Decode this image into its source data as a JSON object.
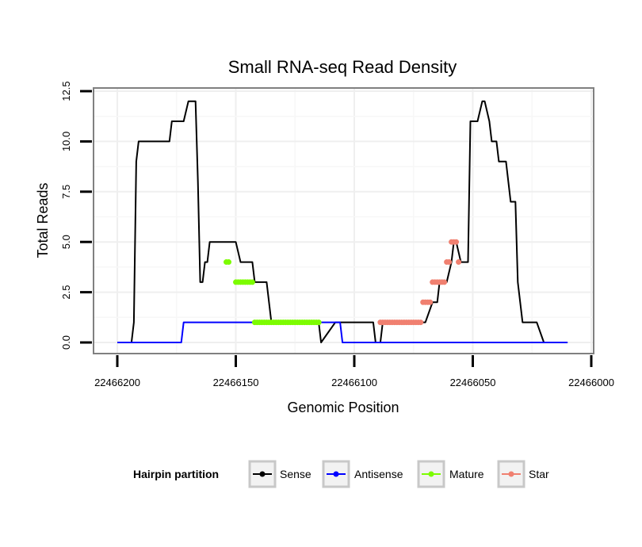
{
  "chart_data": {
    "type": "line",
    "title": "Small RNA-seq Read Density",
    "xlabel": "Genomic Position",
    "ylabel": "Total Reads",
    "xlim": [
      22466000,
      22466200
    ],
    "x_reversed": true,
    "ylim": [
      0,
      12.5
    ],
    "x_ticks": [
      22466200,
      22466150,
      22466100,
      22466050,
      22466000
    ],
    "x_tick_labels": [
      "22466200",
      "22466150",
      "22466100",
      "22466050",
      "22466000"
    ],
    "y_ticks": [
      0,
      2.5,
      5,
      7.5,
      10,
      12.5
    ],
    "y_tick_labels": [
      "0.0",
      "2.5",
      "5.0",
      "7.5",
      "10.0",
      "12.5"
    ],
    "grid": true,
    "legend": {
      "title": "Hairpin partition",
      "position": "bottom",
      "entries": [
        "Sense",
        "Antisense",
        "Mature",
        "Star"
      ]
    },
    "series": [
      {
        "name": "Sense",
        "color": "#000000",
        "style": "line",
        "x": [
          22466200,
          22466194,
          22466193,
          22466192,
          22466191,
          22466184,
          22466178,
          22466177,
          22466172,
          22466170,
          22466167,
          22466166,
          22466165,
          22466164,
          22466163,
          22466162,
          22466161,
          22466159,
          22466153,
          22466150,
          22466148,
          22466147,
          22466146,
          22466145,
          22466144,
          22466143,
          22466142,
          22466141,
          22466140,
          22466139,
          22466138,
          22466137,
          22466136,
          22466135,
          22466134,
          22466133,
          22466132,
          22466131,
          22466130,
          22466129,
          22466128,
          22466127,
          22466126,
          22466125,
          22466124,
          22466123,
          22466122,
          22466121,
          22466120,
          22466119,
          22466118,
          22466117,
          22466116,
          22466115,
          22466114,
          22466108,
          22466107,
          22466103,
          22466100,
          22466092,
          22466091,
          22466089,
          22466088,
          22466087,
          22466086,
          22466084,
          22466080,
          22466075,
          22466070,
          22466067,
          22466066,
          22466065,
          22466064,
          22466063,
          22466062,
          22466061,
          22466059,
          22466058,
          22466057,
          22466055,
          22466054,
          22466052,
          22466051,
          22466049,
          22466048,
          22466046,
          22466045,
          22466043,
          22466042,
          22466040,
          22466039,
          22466037,
          22466036,
          22466034,
          22466033,
          22466032,
          22466031,
          22466029,
          22466023,
          22466020,
          22466010
        ],
        "y": [
          0,
          0,
          1,
          9,
          10,
          10,
          10,
          11,
          11,
          12,
          12,
          8,
          3,
          3,
          4,
          4,
          5,
          5,
          5,
          5,
          4,
          4,
          4,
          4,
          4,
          4,
          3,
          3,
          3,
          3,
          3,
          3,
          2,
          1,
          1,
          1,
          1,
          1,
          1,
          1,
          1,
          1,
          1,
          1,
          1,
          1,
          1,
          1,
          1,
          1,
          1,
          1,
          1,
          1,
          0,
          1,
          1,
          1,
          1,
          1,
          0,
          0,
          1,
          1,
          1,
          1,
          1,
          1,
          1,
          2,
          2,
          2,
          3,
          3,
          3,
          3,
          4,
          5,
          5,
          4,
          4,
          4,
          11,
          11,
          11,
          12,
          12,
          11,
          10,
          10,
          9,
          9,
          9,
          7,
          7,
          7,
          3,
          1,
          1,
          0,
          0
        ]
      },
      {
        "name": "Antisense",
        "color": "#0000ff",
        "style": "line",
        "x": [
          22466200,
          22466173,
          22466172,
          22466158,
          22466157,
          22466150,
          22466106,
          22466105,
          22466020,
          22466010
        ],
        "y": [
          0,
          0,
          1,
          1,
          1,
          1,
          1,
          0,
          0,
          0
        ]
      },
      {
        "name": "Mature",
        "color": "#7cfc00",
        "style": "points",
        "x": [
          22466154,
          22466153,
          22466150,
          22466149,
          22466148,
          22466147,
          22466146,
          22466145,
          22466144,
          22466143,
          22466142,
          22466141,
          22466140,
          22466139,
          22466138,
          22466137,
          22466136,
          22466135,
          22466134,
          22466133,
          22466132,
          22466131,
          22466130,
          22466129,
          22466128,
          22466127,
          22466126,
          22466125,
          22466124,
          22466123,
          22466122,
          22466121,
          22466120,
          22466119,
          22466118,
          22466117,
          22466116,
          22466115
        ],
        "y": [
          4,
          4,
          3,
          3,
          3,
          3,
          3,
          3,
          3,
          3,
          1,
          1,
          1,
          1,
          1,
          1,
          1,
          1,
          1,
          1,
          1,
          1,
          1,
          1,
          1,
          1,
          1,
          1,
          1,
          1,
          1,
          1,
          1,
          1,
          1,
          1,
          1,
          1
        ]
      },
      {
        "name": "Star",
        "color": "#f08070",
        "style": "points",
        "x": [
          22466089,
          22466088,
          22466087,
          22466086,
          22466085,
          22466084,
          22466083,
          22466082,
          22466081,
          22466080,
          22466079,
          22466078,
          22466077,
          22466076,
          22466075,
          22466074,
          22466073,
          22466072,
          22466071,
          22466070,
          22466069,
          22466068,
          22466067,
          22466066,
          22466065,
          22466064,
          22466063,
          22466062,
          22466061,
          22466060,
          22466059,
          22466058,
          22466057,
          22466056
        ],
        "y": [
          1,
          1,
          1,
          1,
          1,
          1,
          1,
          1,
          1,
          1,
          1,
          1,
          1,
          1,
          1,
          1,
          1,
          1,
          2,
          2,
          2,
          2,
          3,
          3,
          3,
          3,
          3,
          3,
          4,
          4,
          5,
          5,
          5,
          4
        ]
      }
    ]
  }
}
